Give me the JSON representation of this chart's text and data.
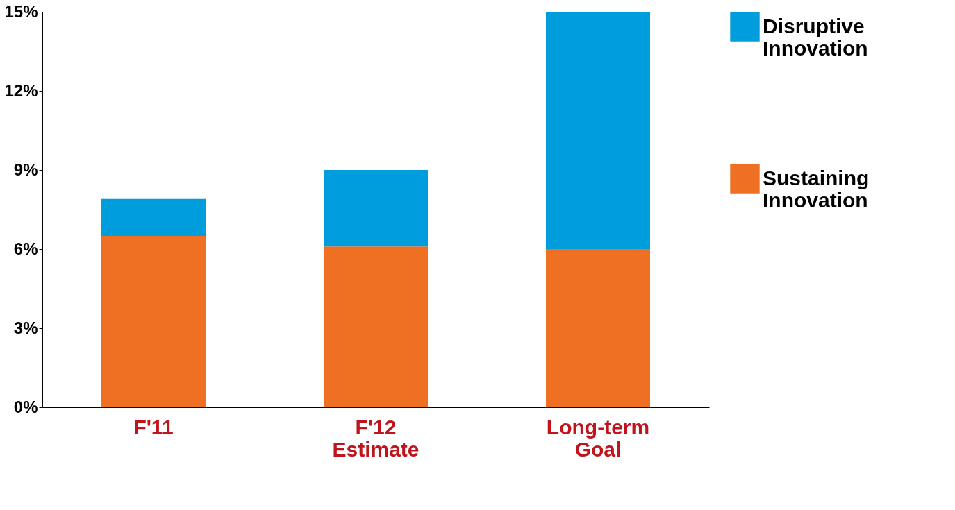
{
  "chart_data": {
    "type": "bar",
    "stacked": true,
    "categories": [
      "F'11",
      "F'12\nEstimate",
      "Long-term\nGoal"
    ],
    "series": [
      {
        "name": "Sustaining Innovation",
        "color": "#f07023",
        "values": [
          6.5,
          6.1,
          6.0
        ]
      },
      {
        "name": "Disruptive Innovation",
        "color": "#009ddc",
        "values": [
          1.4,
          2.9,
          9.0
        ]
      }
    ],
    "ylim": [
      0,
      15
    ],
    "yticks": [
      {
        "value": 0,
        "label": "0%"
      },
      {
        "value": 3,
        "label": "3%"
      },
      {
        "value": 6,
        "label": "6%"
      },
      {
        "value": 9,
        "label": "9%"
      },
      {
        "value": 12,
        "label": "12%"
      },
      {
        "value": 15,
        "label": "15%"
      }
    ],
    "grid": false,
    "legend": "right"
  }
}
